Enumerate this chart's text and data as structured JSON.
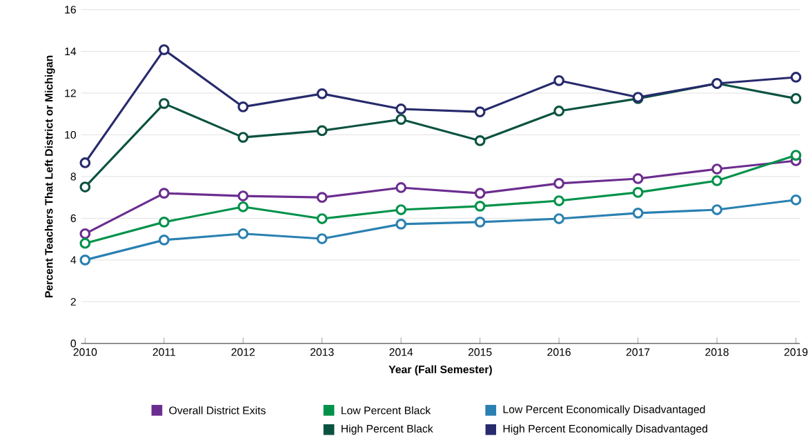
{
  "chart_data": {
    "type": "line",
    "xlabel": "Year (Fall Semester)",
    "ylabel": "Percent Teachers That Left District or Michigan",
    "x": [
      2010,
      2011,
      2012,
      2013,
      2014,
      2015,
      2016,
      2017,
      2018,
      2019
    ],
    "xlim": [
      2009.95,
      2019.05
    ],
    "xticks": [
      2010,
      2011,
      2012,
      2013,
      2014,
      2015,
      2016,
      2017,
      2018,
      2019
    ],
    "ylim": [
      0,
      16
    ],
    "yticks": [
      0,
      2,
      4,
      6,
      8,
      10,
      12,
      14,
      16
    ],
    "grid": "y",
    "legend": "bottom",
    "marker": "circle",
    "line_style": "solid",
    "series": [
      {
        "name": "Overall District Exits",
        "color": "#6b2d8f",
        "values": [
          5.26,
          7.2,
          7.07,
          7.0,
          7.47,
          7.2,
          7.67,
          7.9,
          8.36,
          8.76
        ]
      },
      {
        "name": "Low Percent Black",
        "color": "#00924a",
        "values": [
          4.8,
          5.82,
          6.55,
          5.98,
          6.41,
          6.58,
          6.84,
          7.24,
          7.8,
          9.02
        ]
      },
      {
        "name": "Low Percent Economically Disadvantaged",
        "color": "#2a80b1",
        "values": [
          4.0,
          4.96,
          5.26,
          5.02,
          5.72,
          5.82,
          5.98,
          6.25,
          6.41,
          6.88
        ]
      },
      {
        "name": "High Percent Black",
        "color": "#0b5240",
        "values": [
          7.5,
          11.5,
          9.88,
          10.2,
          10.74,
          9.72,
          11.14,
          11.74,
          12.46,
          11.74
        ]
      },
      {
        "name": "High Percent Economically Disadvantaged",
        "color": "#272a6c",
        "values": [
          8.66,
          14.08,
          11.34,
          11.97,
          11.24,
          11.1,
          12.6,
          11.8,
          12.46,
          12.76
        ]
      }
    ]
  }
}
